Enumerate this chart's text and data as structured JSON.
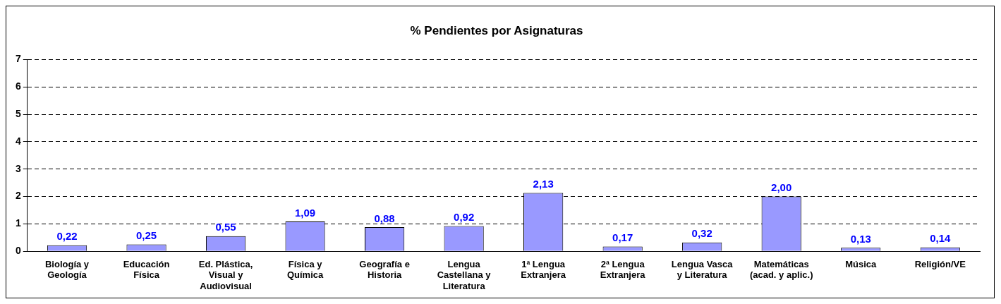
{
  "chart_data": {
    "type": "bar",
    "title": "% Pendientes por Asignaturas",
    "categories": [
      "Biología y\nGeología",
      "Educación\nFísica",
      "Ed. Plástica,\nVisual y\nAudiovisual",
      "Física y\nQuímica",
      "Geografía e\nHistoria",
      "Lengua\nCastellana y\nLiteratura",
      "1ª Lengua\nExtranjera",
      "2ª Lengua\nExtranjera",
      "Lengua Vasca\ny Literatura",
      "Matemáticas\n(acad. y aplic.)",
      "Música",
      "Religión/VE"
    ],
    "values": [
      0.22,
      0.25,
      0.55,
      1.09,
      0.88,
      0.92,
      2.13,
      0.17,
      0.32,
      2.0,
      0.13,
      0.14
    ],
    "value_labels": [
      "0,22",
      "0,25",
      "0,55",
      "1,09",
      "0,88",
      "0,92",
      "2,13",
      "0,17",
      "0,32",
      "2,00",
      "0,13",
      "0,14"
    ],
    "color": "#9999ff",
    "ylim": [
      0,
      7
    ],
    "yticks": [
      0,
      1,
      2,
      3,
      4,
      5,
      6,
      7
    ],
    "grid": "y",
    "legend": false
  }
}
